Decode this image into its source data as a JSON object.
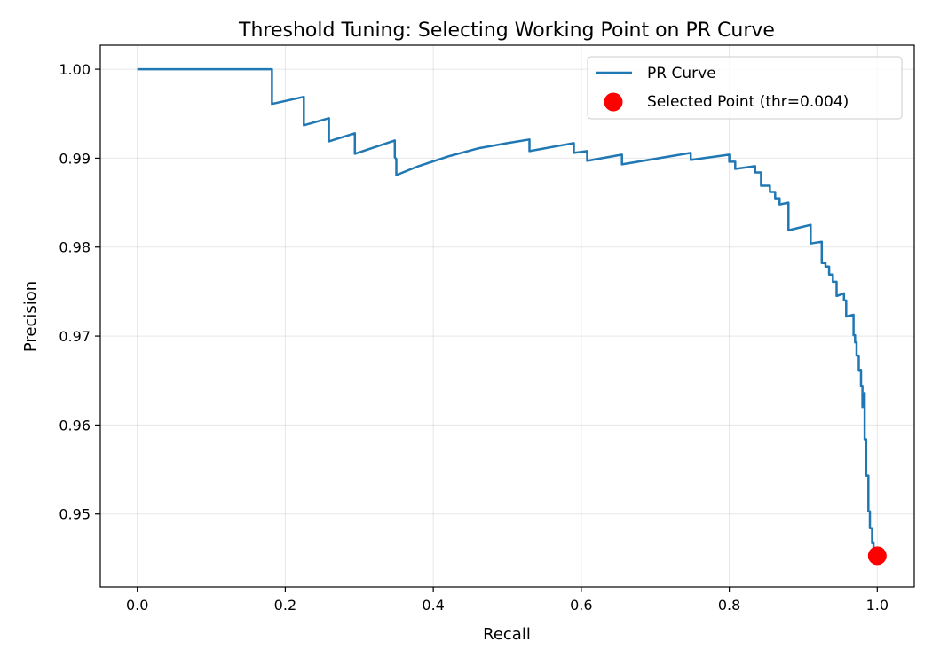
{
  "chart_data": {
    "type": "line",
    "title": "Threshold Tuning: Selecting Working Point on PR Curve",
    "xlabel": "Recall",
    "ylabel": "Precision",
    "xlim": [
      -0.05,
      1.05
    ],
    "ylim": [
      0.9418,
      1.0027
    ],
    "grid": true,
    "legend_position": "top-right",
    "x_ticks": [
      0.0,
      0.2,
      0.4,
      0.6,
      0.8,
      1.0
    ],
    "x_tick_labels": [
      "0.0",
      "0.2",
      "0.4",
      "0.6",
      "0.8",
      "1.0"
    ],
    "y_ticks": [
      0.95,
      0.96,
      0.97,
      0.98,
      0.99,
      1.0
    ],
    "y_tick_labels": [
      "0.95",
      "0.96",
      "0.97",
      "0.98",
      "0.99",
      "1.00"
    ],
    "series": [
      {
        "name": "PR Curve",
        "color": "#1f77b4",
        "x": [
          0.0,
          0.182,
          0.182,
          0.225,
          0.225,
          0.259,
          0.259,
          0.294,
          0.294,
          0.348,
          0.348,
          0.35,
          0.35,
          0.38,
          0.42,
          0.46,
          0.5,
          0.53,
          0.53,
          0.59,
          0.59,
          0.608,
          0.608,
          0.655,
          0.655,
          0.748,
          0.748,
          0.8,
          0.8,
          0.808,
          0.808,
          0.835,
          0.835,
          0.843,
          0.843,
          0.855,
          0.855,
          0.862,
          0.862,
          0.868,
          0.868,
          0.88,
          0.88,
          0.91,
          0.91,
          0.925,
          0.925,
          0.93,
          0.93,
          0.935,
          0.935,
          0.94,
          0.94,
          0.945,
          0.945,
          0.955,
          0.955,
          0.958,
          0.958,
          0.968,
          0.968,
          0.97,
          0.97,
          0.972,
          0.972,
          0.975,
          0.975,
          0.978,
          0.978,
          0.98,
          0.98,
          0.983,
          0.983,
          0.985,
          0.985,
          0.988,
          0.988,
          0.99,
          0.99,
          0.993,
          0.993,
          0.995,
          0.995,
          0.997,
          0.997,
          1.0
        ],
        "y": [
          1.0,
          1.0,
          0.9961,
          0.9969,
          0.9937,
          0.9945,
          0.9919,
          0.9928,
          0.9905,
          0.992,
          0.9901,
          0.9899,
          0.9881,
          0.9891,
          0.9902,
          0.9911,
          0.9917,
          0.9921,
          0.9908,
          0.9917,
          0.9906,
          0.9908,
          0.9897,
          0.9904,
          0.9893,
          0.9906,
          0.9898,
          0.9904,
          0.9896,
          0.9896,
          0.9888,
          0.9891,
          0.9884,
          0.9884,
          0.9869,
          0.9869,
          0.9862,
          0.9862,
          0.9855,
          0.9855,
          0.9848,
          0.985,
          0.9819,
          0.9825,
          0.9804,
          0.9806,
          0.9782,
          0.9782,
          0.9778,
          0.9778,
          0.9769,
          0.9769,
          0.9761,
          0.9761,
          0.9745,
          0.9748,
          0.974,
          0.974,
          0.9722,
          0.9724,
          0.9701,
          0.9701,
          0.9693,
          0.9693,
          0.9678,
          0.9678,
          0.9662,
          0.9662,
          0.9644,
          0.9644,
          0.962,
          0.9636,
          0.9584,
          0.9584,
          0.9543,
          0.9543,
          0.9503,
          0.9503,
          0.9484,
          0.9484,
          0.9468,
          0.9468,
          0.9458,
          0.9458,
          0.9453,
          0.9453
        ]
      },
      {
        "name": "Selected Point (thr=0.004)",
        "color": "#ff0000",
        "marker": "circle",
        "x": [
          1.0
        ],
        "y": [
          0.9453
        ]
      }
    ]
  }
}
